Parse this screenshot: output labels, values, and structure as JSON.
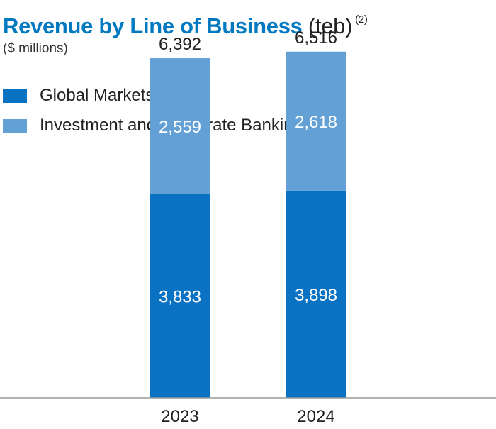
{
  "colors": {
    "global_markets": "#0a72c3",
    "investment_corporate_banking": "#62a0d6",
    "title": "#0079c1",
    "axis": "#999999"
  },
  "chart_data": {
    "type": "bar",
    "stacked": true,
    "title": "Revenue by Line of Business",
    "title_suffix": "(teb)",
    "title_note": "(2)",
    "subtitle": "($ millions)",
    "categories": [
      "2023",
      "2024"
    ],
    "series": [
      {
        "name": "Global Markets",
        "values": [
          3833,
          3898
        ],
        "labels": [
          "3,833",
          "3,898"
        ]
      },
      {
        "name": "Investment and Corporate Banking",
        "values": [
          2559,
          2618
        ],
        "labels": [
          "2,559",
          "2,618"
        ]
      }
    ],
    "totals": [
      6392,
      6516
    ],
    "total_labels": [
      "6,392",
      "6,516"
    ],
    "legend_position": "top-left",
    "grid": false,
    "ylim": [
      0,
      7000
    ]
  }
}
